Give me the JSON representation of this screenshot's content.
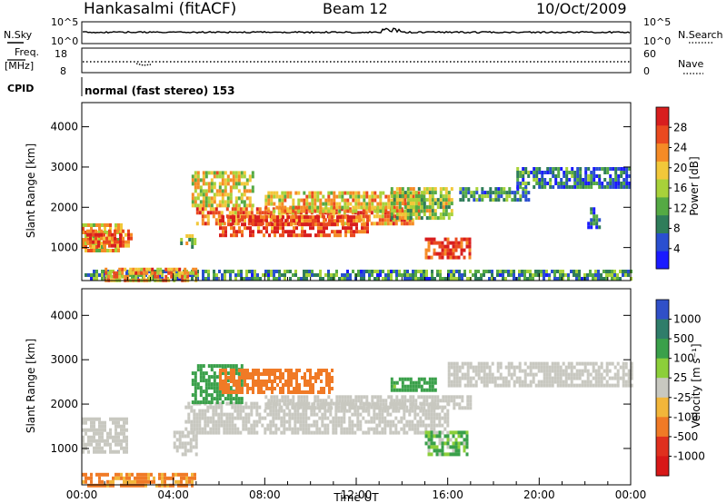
{
  "header": {
    "station": "Hankasalmi (fitACF)",
    "beam": "Beam 12",
    "date": "10/Oct/2009"
  },
  "noise_panel": {
    "left_label": "N.Sky",
    "right_label": "N.Search",
    "left_ticks": [
      "10^5",
      "10^0"
    ],
    "right_ticks": [
      "10^5",
      "10^0"
    ]
  },
  "freq_panel": {
    "label_line1": "Freq.",
    "label_line2": "[MHz]",
    "left_ticks": [
      "18",
      "8"
    ],
    "right_label": "Nave",
    "right_ticks": [
      "60",
      "0"
    ]
  },
  "cpid_panel": {
    "label": "CPID",
    "text": "normal (fast stereo) 153"
  },
  "chart_data": [
    {
      "type": "heatmap",
      "panel": "power",
      "ylabel": "Slant Range [km]",
      "xlabel": "",
      "yticks": [
        "1000",
        "2000",
        "3000",
        "4000"
      ],
      "ylim": [
        180,
        4600
      ],
      "xlim": [
        0,
        24
      ],
      "colorbar_label": "Power [dB]",
      "colorbar_ticks": [
        "4",
        "8",
        "12",
        "16",
        "20",
        "24",
        "28"
      ],
      "colorbar_range": [
        0,
        32
      ],
      "colors": [
        "#1a1aff",
        "#2a4fd0",
        "#2f7d5a",
        "#55aa44",
        "#a8d23a",
        "#f2c83a",
        "#f58b26",
        "#ea4a1f",
        "#d81e1e"
      ],
      "regions": [
        {
          "t0": 0.0,
          "t1": 1.7,
          "r0": 950,
          "r1": 1600,
          "level": 20
        },
        {
          "t0": 0.2,
          "t1": 2.2,
          "r0": 1000,
          "r1": 1450,
          "level": 26
        },
        {
          "t0": 4.3,
          "t1": 5.0,
          "r0": 980,
          "r1": 1330,
          "level": 16
        },
        {
          "t0": 4.8,
          "t1": 7.5,
          "r0": 2000,
          "r1": 2900,
          "level": 18
        },
        {
          "t0": 5.0,
          "t1": 14.5,
          "r0": 1600,
          "r1": 2000,
          "level": 24
        },
        {
          "t0": 6.0,
          "t1": 12.5,
          "r0": 1300,
          "r1": 1800,
          "level": 28
        },
        {
          "t0": 8.0,
          "t1": 15.0,
          "r0": 1900,
          "r1": 2400,
          "level": 20
        },
        {
          "t0": 13.5,
          "t1": 16.2,
          "r0": 1700,
          "r1": 2500,
          "level": 16
        },
        {
          "t0": 15.0,
          "t1": 17.0,
          "r0": 750,
          "r1": 1250,
          "level": 30
        },
        {
          "t0": 16.5,
          "t1": 19.5,
          "r0": 2150,
          "r1": 2500,
          "level": 10
        },
        {
          "t0": 19.0,
          "t1": 24.0,
          "r0": 2500,
          "r1": 3000,
          "level": 8
        },
        {
          "t0": 22.1,
          "t1": 22.6,
          "r0": 1500,
          "r1": 2000,
          "level": 8
        },
        {
          "t0": 0.0,
          "t1": 24.0,
          "r0": 180,
          "r1": 450,
          "level": 10
        },
        {
          "t0": 1.0,
          "t1": 5.0,
          "r0": 200,
          "r1": 500,
          "level": 22
        }
      ]
    },
    {
      "type": "heatmap",
      "panel": "velocity",
      "ylabel": "Slant Range [km]",
      "xlabel": "Time UT",
      "yticks": [
        "1000",
        "2000",
        "3000",
        "4000"
      ],
      "ylim": [
        180,
        4600
      ],
      "xlim": [
        0,
        24
      ],
      "xticks": [
        "00:00",
        "04:00",
        "08:00",
        "12:00",
        "16:00",
        "20:00",
        "00:00"
      ],
      "colorbar_label": "Velocity [m s⁻¹]",
      "colorbar_ticks": [
        "1000",
        "500",
        "100",
        "25",
        "-25",
        "-100",
        "-500",
        "-1000"
      ],
      "colors": [
        "#3050c8",
        "#2f7d6a",
        "#3aa04a",
        "#8ccf3a",
        "#c8c8c0",
        "#f2b63a",
        "#f07a26",
        "#e0301e",
        "#d81818"
      ],
      "regions": [
        {
          "t0": 0.0,
          "t1": 2.0,
          "r0": 900,
          "r1": 1700,
          "level": 0
        },
        {
          "t0": 4.0,
          "t1": 5.0,
          "r0": 900,
          "r1": 1400,
          "level": 0
        },
        {
          "t0": 4.5,
          "t1": 16.0,
          "r0": 1350,
          "r1": 2050,
          "level": 0
        },
        {
          "t0": 8.0,
          "t1": 17.0,
          "r0": 1900,
          "r1": 2200,
          "level": 0
        },
        {
          "t0": 16.0,
          "t1": 24.0,
          "r0": 2400,
          "r1": 2950,
          "level": 0
        },
        {
          "t0": 4.8,
          "t1": 7.0,
          "r0": 2000,
          "r1": 2900,
          "level": 300
        },
        {
          "t0": 6.0,
          "t1": 11.0,
          "r0": 2300,
          "r1": 2800,
          "level": -300
        },
        {
          "t0": 13.5,
          "t1": 15.5,
          "r0": 2300,
          "r1": 2600,
          "level": 200
        },
        {
          "t0": 15.0,
          "t1": 16.8,
          "r0": 900,
          "r1": 1400,
          "level": 100
        },
        {
          "t0": 0.0,
          "t1": 5.0,
          "r0": 180,
          "r1": 450,
          "level": -150
        }
      ]
    }
  ]
}
